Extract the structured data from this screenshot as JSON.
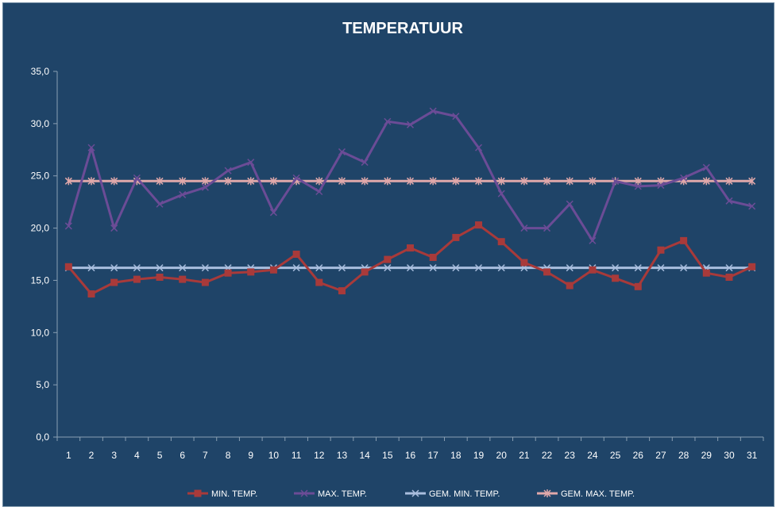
{
  "chart_data": {
    "type": "line",
    "title": "TEMPERATUUR",
    "xlabel": "",
    "ylabel": "",
    "categories": [
      "1",
      "2",
      "3",
      "4",
      "5",
      "6",
      "7",
      "8",
      "9",
      "10",
      "11",
      "12",
      "13",
      "14",
      "15",
      "16",
      "17",
      "18",
      "19",
      "20",
      "21",
      "22",
      "23",
      "24",
      "25",
      "26",
      "27",
      "28",
      "29",
      "30",
      "31"
    ],
    "ylim": [
      0,
      35
    ],
    "yticks": [
      "0,0",
      "5,0",
      "10,0",
      "15,0",
      "20,0",
      "25,0",
      "30,0",
      "35,0"
    ],
    "ytick_values": [
      0,
      5,
      10,
      15,
      20,
      25,
      30,
      35
    ],
    "grid": false,
    "legend_position": "bottom",
    "background_color": "#1f4468",
    "series": [
      {
        "name": "MIN. TEMP.",
        "color": "#a83a3a",
        "marker": "square",
        "values": [
          16.3,
          13.7,
          14.8,
          15.1,
          15.3,
          15.1,
          14.8,
          15.7,
          15.8,
          16.0,
          17.5,
          14.8,
          14.0,
          15.8,
          17.0,
          18.1,
          17.2,
          19.1,
          20.3,
          18.7,
          16.7,
          15.8,
          14.5,
          16.0,
          15.2,
          14.4,
          17.9,
          18.8,
          15.7,
          15.3,
          16.3
        ]
      },
      {
        "name": "MAX. TEMP.",
        "color": "#6b4c96",
        "marker": "x",
        "values": [
          20.2,
          27.7,
          20.0,
          24.8,
          22.3,
          23.2,
          23.9,
          25.5,
          26.3,
          21.5,
          24.8,
          23.5,
          27.3,
          26.3,
          30.2,
          29.9,
          31.2,
          30.7,
          27.7,
          23.3,
          20.0,
          20.0,
          22.3,
          18.8,
          24.5,
          24.0,
          24.1,
          24.8,
          25.8,
          22.6,
          22.1
        ]
      },
      {
        "name": "GEM. MIN. TEMP.",
        "color": "#a9bede",
        "marker": "x",
        "values": [
          16.2,
          16.2,
          16.2,
          16.2,
          16.2,
          16.2,
          16.2,
          16.2,
          16.2,
          16.2,
          16.2,
          16.2,
          16.2,
          16.2,
          16.2,
          16.2,
          16.2,
          16.2,
          16.2,
          16.2,
          16.2,
          16.2,
          16.2,
          16.2,
          16.2,
          16.2,
          16.2,
          16.2,
          16.2,
          16.2,
          16.2
        ]
      },
      {
        "name": "GEM. MAX. TEMP.",
        "color": "#e0a8aa",
        "marker": "star",
        "values": [
          24.5,
          24.5,
          24.5,
          24.5,
          24.5,
          24.5,
          24.5,
          24.5,
          24.5,
          24.5,
          24.5,
          24.5,
          24.5,
          24.5,
          24.5,
          24.5,
          24.5,
          24.5,
          24.5,
          24.5,
          24.5,
          24.5,
          24.5,
          24.5,
          24.5,
          24.5,
          24.5,
          24.5,
          24.5,
          24.5,
          24.5
        ]
      }
    ]
  }
}
